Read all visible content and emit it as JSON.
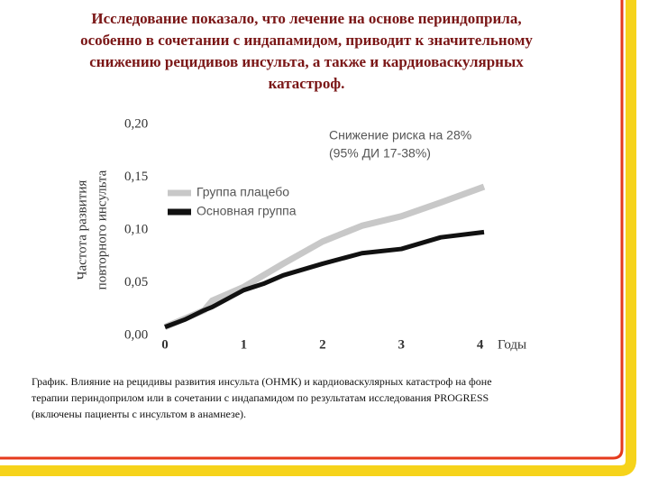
{
  "title_lines": [
    "Исследование показало, что лечение на основе периндоприла,",
    "особенно в сочетании с индапамидом, приводит к значительному",
    "снижению рецидивов инсульта, а также и кардиоваскулярных",
    "катастроф."
  ],
  "chart_data": {
    "type": "line",
    "ylabel_lines": [
      "Частота развития",
      "повторного инсульта"
    ],
    "xlabel": "Годы",
    "annotation_lines": [
      "Снижение риска на 28%",
      "(95% ДИ 17-38%)"
    ],
    "x": [
      0,
      0.25,
      0.5,
      0.6,
      1.0,
      1.25,
      1.5,
      2.0,
      2.5,
      3.0,
      3.5,
      4.05
    ],
    "series": [
      {
        "name": "Группа плацебо",
        "color": "#c8c8c8",
        "values": [
          0.008,
          0.016,
          0.024,
          0.033,
          0.046,
          0.057,
          0.068,
          0.089,
          0.104,
          0.113,
          0.126,
          0.141
        ]
      },
      {
        "name": "Основная группа",
        "color": "#111111",
        "values": [
          0.008,
          0.015,
          0.024,
          0.027,
          0.043,
          0.049,
          0.057,
          0.068,
          0.078,
          0.082,
          0.093,
          0.098
        ]
      }
    ],
    "xlim": [
      0,
      4.05
    ],
    "ylim": [
      0,
      0.2
    ],
    "xticks": [
      0,
      1,
      2,
      3,
      4
    ],
    "yticks": [
      {
        "value": 0,
        "label": "0,00"
      },
      {
        "value": 0.05,
        "label": "0,05"
      },
      {
        "value": 0.1,
        "label": "0,10"
      },
      {
        "value": 0.15,
        "label": "0,15"
      },
      {
        "value": 0.2,
        "label": "0,20"
      }
    ],
    "legend": "upper left"
  },
  "caption_lines": [
    "График. Влияние на рецидивы развития инсульта (ОНМК) и кардиоваскулярных катастроф на фоне",
    "терапии периндоприлом или в сочетании с индапамидом по результатам исследования PROGRESS",
    "(включены пациенты с инсультом в анамнезе)."
  ]
}
